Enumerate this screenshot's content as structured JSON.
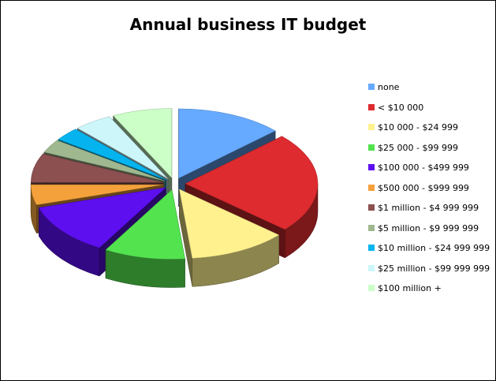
{
  "chart_data": {
    "type": "pie",
    "title": "Annual business IT budget",
    "style": "3d-exploded",
    "legend_position": "right",
    "slices": [
      {
        "label": "none",
        "value": 12.5,
        "color": "#66aaff"
      },
      {
        "label": "< $10 000",
        "value": 22.5,
        "color": "#dd2b2f"
      },
      {
        "label": "$10 000 - $24 999",
        "value": 11.5,
        "color": "#fff18e"
      },
      {
        "label": "$25 000 - $99 999",
        "value": 9.5,
        "color": "#53e34f"
      },
      {
        "label": "$100 000 - $499 999",
        "value": 11.5,
        "color": "#5d0ff0"
      },
      {
        "label": "$500 000 - $999 999",
        "value": 4.5,
        "color": "#f4a13c"
      },
      {
        "label": "$1 million - $4 999 999",
        "value": 6.5,
        "color": "#8c5050"
      },
      {
        "label": "$5 million - $9 999 999",
        "value": 3.0,
        "color": "#9fb88f"
      },
      {
        "label": "$10 million - $24 999 999",
        "value": 3.0,
        "color": "#05b4ee"
      },
      {
        "label": "$25 million - $99 999 999",
        "value": 4.5,
        "color": "#ccf6fa"
      },
      {
        "label": "$100 million +",
        "value": 7.0,
        "color": "#ccffc8"
      }
    ]
  }
}
